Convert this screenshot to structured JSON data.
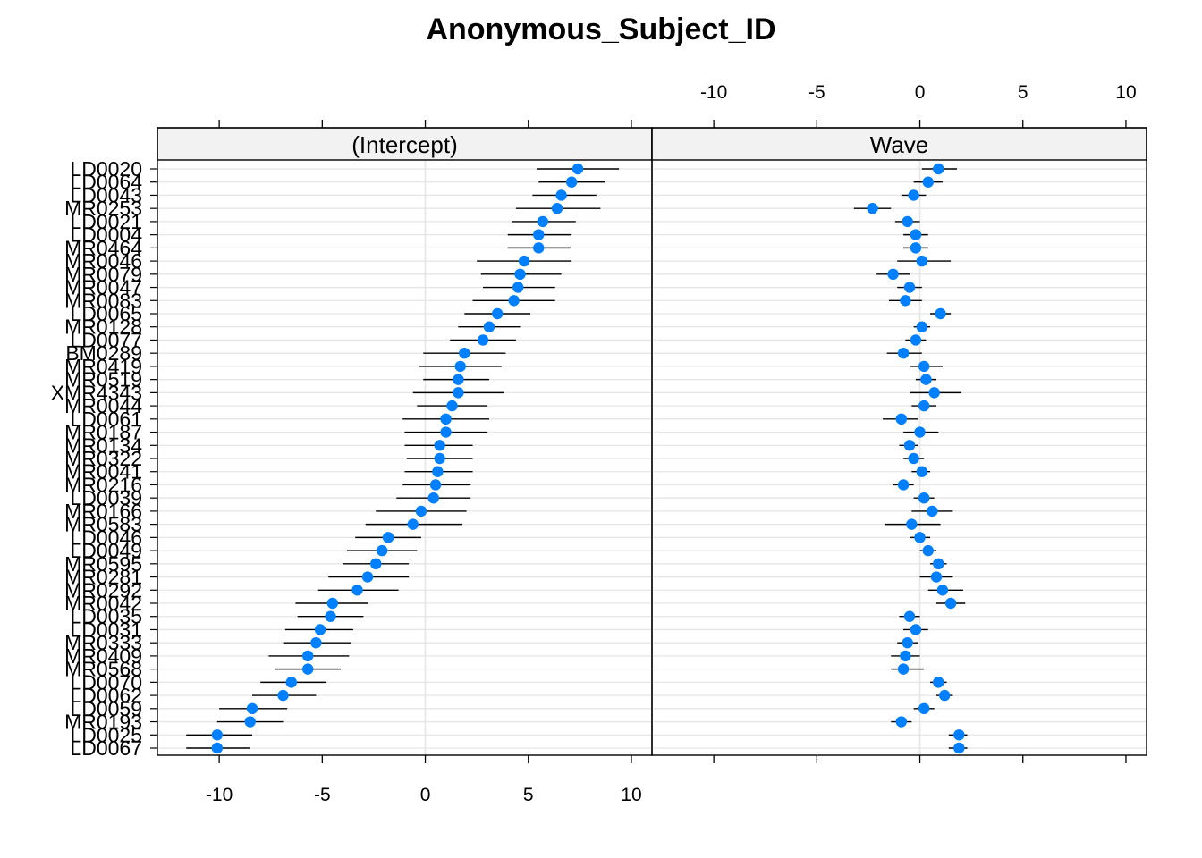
{
  "chart_data": {
    "type": "scatter",
    "title": "Anonymous_Subject_ID",
    "subjects": [
      "LD0020",
      "LD0064",
      "LD0043",
      "MR0253",
      "LD0021",
      "LD0004",
      "MR0464",
      "MR0046",
      "MR0079",
      "MR0047",
      "MR0083",
      "LD0065",
      "MR0128",
      "LD0077",
      "BM0289",
      "MR0419",
      "MR0519",
      "XMR4343",
      "MR0044",
      "LD0061",
      "MR0187",
      "MR0134",
      "MR0322",
      "MR0041",
      "MR0216",
      "LD0039",
      "MR0166",
      "MR0583",
      "LD0046",
      "LD0049",
      "MR0595",
      "MR0281",
      "MR0292",
      "MR0042",
      "LD0035",
      "LD0031",
      "MR0333",
      "MR0409",
      "MR0568",
      "LD0070",
      "LD0062",
      "LD0059",
      "MR0193",
      "LD0025",
      "LD0067"
    ],
    "panels": [
      {
        "name": "(Intercept)",
        "estimate": [
          7.4,
          7.1,
          6.6,
          6.4,
          5.7,
          5.5,
          5.5,
          4.8,
          4.6,
          4.5,
          4.3,
          3.5,
          3.1,
          2.8,
          1.9,
          1.7,
          1.6,
          1.6,
          1.3,
          1.0,
          1.0,
          0.7,
          0.7,
          0.6,
          0.5,
          0.4,
          -0.2,
          -0.6,
          -1.8,
          -2.1,
          -2.4,
          -2.8,
          -3.3,
          -4.5,
          -4.6,
          -5.1,
          -5.3,
          -5.7,
          -5.7,
          -6.5,
          -6.9,
          -8.4,
          -8.5,
          -10.1,
          -10.1
        ],
        "lower": [
          5.4,
          5.5,
          5.2,
          4.4,
          4.2,
          4.0,
          4.0,
          2.5,
          2.7,
          2.8,
          2.3,
          1.9,
          1.6,
          1.2,
          -0.1,
          -0.3,
          -0.1,
          -0.6,
          -0.4,
          -1.1,
          -1.0,
          -1.0,
          -0.9,
          -1.0,
          -1.1,
          -1.4,
          -2.4,
          -2.9,
          -3.4,
          -3.8,
          -4.0,
          -4.7,
          -5.2,
          -6.3,
          -6.2,
          -6.8,
          -6.9,
          -7.6,
          -7.3,
          -8.0,
          -8.4,
          -10.0,
          -10.1,
          -11.6,
          -11.6
        ],
        "upper": [
          9.4,
          8.7,
          8.3,
          8.5,
          7.3,
          7.1,
          7.1,
          7.1,
          6.6,
          6.3,
          6.3,
          5.1,
          4.6,
          4.4,
          3.9,
          3.7,
          3.1,
          3.8,
          3.0,
          3.1,
          3.0,
          2.3,
          2.3,
          2.3,
          2.2,
          2.2,
          2.0,
          1.8,
          -0.2,
          -0.4,
          -0.8,
          -0.8,
          -1.3,
          -2.8,
          -3.0,
          -3.5,
          -3.6,
          -3.7,
          -4.1,
          -4.8,
          -5.3,
          -6.7,
          -6.9,
          -8.4,
          -8.5
        ]
      },
      {
        "name": "Wave",
        "estimate": [
          0.9,
          0.4,
          -0.3,
          -2.3,
          -0.6,
          -0.2,
          -0.2,
          0.1,
          -1.3,
          -0.5,
          -0.7,
          1.0,
          0.1,
          -0.2,
          -0.8,
          0.2,
          0.3,
          0.7,
          0.2,
          -0.9,
          0.0,
          -0.5,
          -0.3,
          0.1,
          -0.8,
          0.2,
          0.6,
          -0.4,
          0.0,
          0.4,
          0.9,
          0.8,
          1.1,
          1.5,
          -0.5,
          -0.2,
          -0.6,
          -0.7,
          -0.8,
          0.9,
          1.2,
          0.2,
          -0.9,
          1.9,
          1.9
        ],
        "lower": [
          0.1,
          -0.3,
          -0.9,
          -3.2,
          -1.2,
          -0.8,
          -0.8,
          -1.1,
          -2.1,
          -1.1,
          -1.5,
          0.5,
          -0.3,
          -0.7,
          -1.6,
          -0.5,
          -0.2,
          -0.5,
          -0.4,
          -1.8,
          -0.8,
          -1.0,
          -0.8,
          -0.4,
          -1.3,
          -0.3,
          -0.4,
          -1.7,
          -0.5,
          0.0,
          0.5,
          0.0,
          0.4,
          0.8,
          -1.0,
          -0.8,
          -1.1,
          -1.4,
          -1.4,
          0.5,
          0.8,
          -0.3,
          -1.4,
          1.4,
          1.4
        ],
        "upper": [
          1.8,
          1.1,
          0.3,
          -1.4,
          0.0,
          0.4,
          0.4,
          1.5,
          -0.5,
          0.1,
          0.1,
          1.5,
          0.5,
          0.3,
          0.1,
          1.1,
          0.8,
          2.0,
          0.8,
          -0.1,
          0.9,
          -0.1,
          0.2,
          0.5,
          -0.3,
          0.7,
          1.6,
          1.0,
          0.5,
          0.8,
          1.3,
          1.6,
          2.1,
          2.2,
          0.0,
          0.4,
          -0.1,
          0.0,
          0.2,
          1.3,
          1.6,
          0.7,
          -0.4,
          2.3,
          2.3
        ]
      }
    ],
    "xlim": [
      -13,
      11
    ],
    "xticks": [
      -10,
      -5,
      0,
      5,
      10
    ],
    "grid": true,
    "point_color": "#0080ff",
    "line_color": "#000000",
    "strip_color": "#f2f2f2"
  }
}
